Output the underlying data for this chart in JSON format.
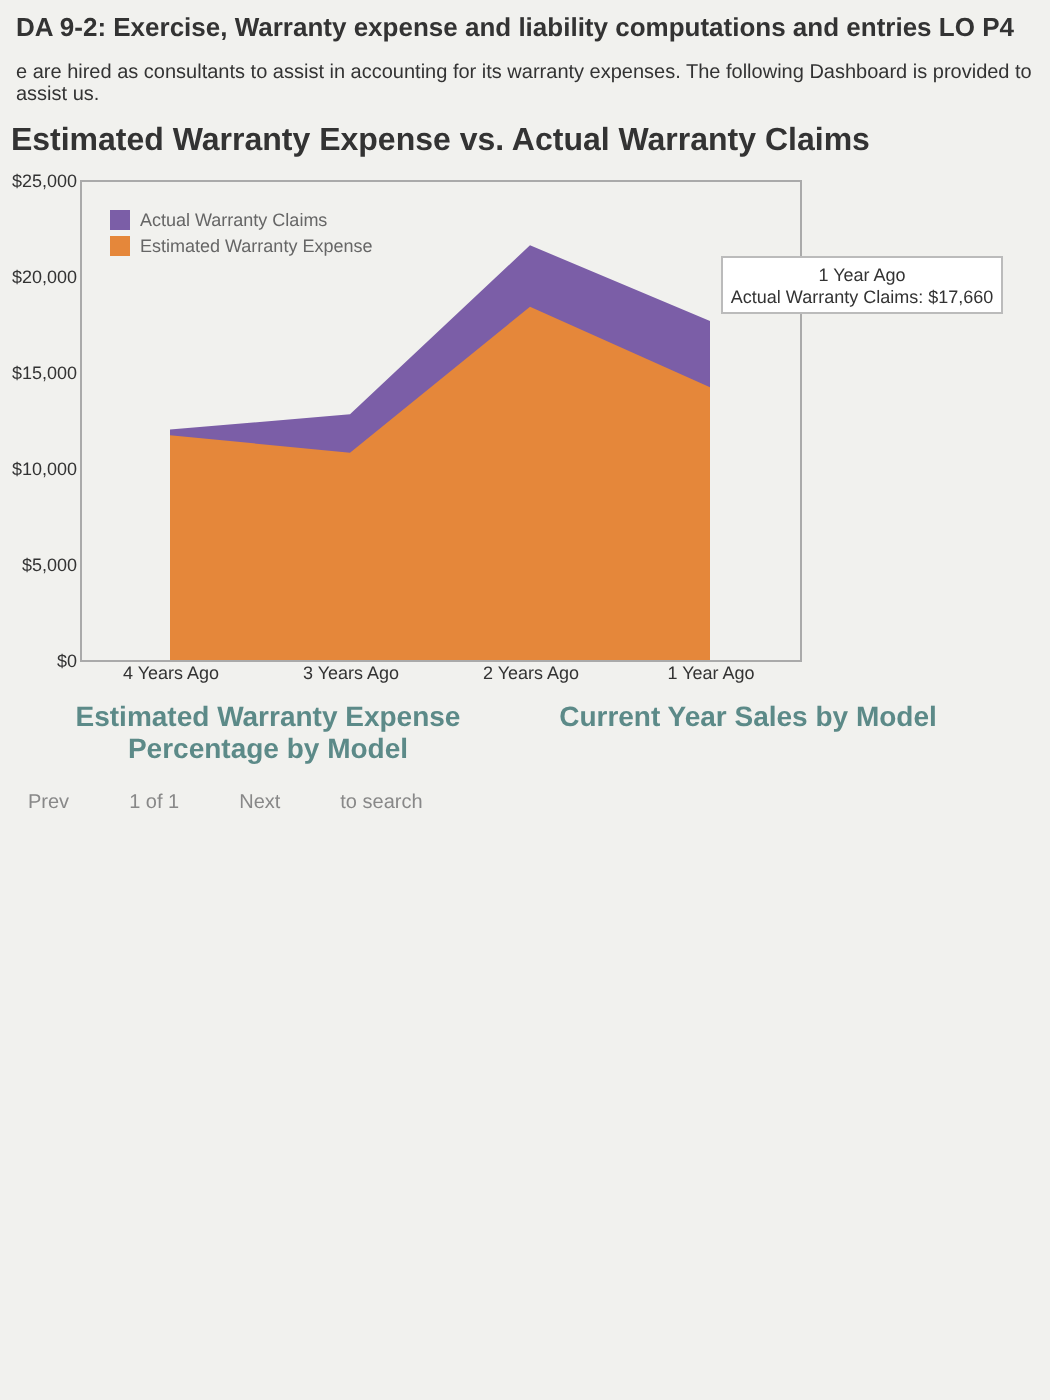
{
  "chart_data": {
    "type": "area",
    "title": "Estimated Warranty Expense vs. Actual Warranty Claims",
    "categories": [
      "4 Years Ago",
      "3 Years Ago",
      "2 Years Ago",
      "1 Year Ago"
    ],
    "series": [
      {
        "name": "Actual Warranty Claims",
        "color": "#7b5ea7",
        "values": [
          12000,
          12800,
          21600,
          17660
        ]
      },
      {
        "name": "Estimated Warranty Expense",
        "color": "#e5873a",
        "values": [
          11700,
          10800,
          18400,
          14200
        ]
      }
    ],
    "ylim": [
      0,
      25000
    ],
    "yticks": [
      {
        "value": 0,
        "label": "$0"
      },
      {
        "value": 5000,
        "label": "$5,000"
      },
      {
        "value": 10000,
        "label": "$10,000"
      },
      {
        "value": 15000,
        "label": "$15,000"
      },
      {
        "value": 20000,
        "label": "$20,000"
      },
      {
        "value": 25000,
        "label": "$25,000"
      }
    ],
    "legend": "top left",
    "grid": false,
    "annotations": [
      "DA 9-2: Exercise, Warranty expense and liability computations and entries LO P4",
      "e are hired as consultants to assist in accounting for its warranty expenses. The following Dashboard is provided to assist us.",
      {
        "text": "1 Year Ago\nActual Warranty Claims: $17,660",
        "x": "1 Year Ago",
        "y": 17660
      },
      "Estimated Warranty Expense Percentage by Model",
      "Current Year Sales by Model",
      "Prev",
      "1 of 1",
      "Next",
      "to search"
    ]
  }
}
